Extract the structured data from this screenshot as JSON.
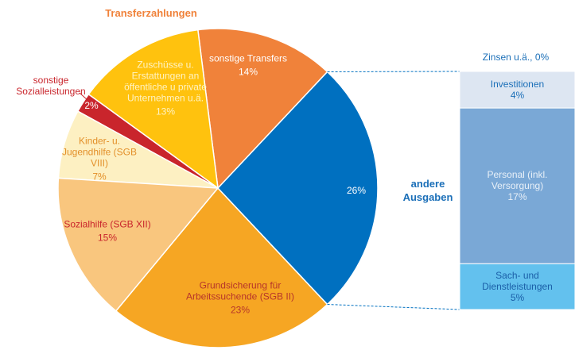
{
  "chart_data": {
    "type": "pie",
    "group_label": "Transferzahlungen",
    "categories": [
      "sonstige Transfers",
      "Zuschüsse u. Erstattungen an öffentliche u private Unternehmen u.ä.",
      "sonstige Sozialleistungen",
      "Kinder- u. Jugendhilfe (SGB VIII)",
      "Sozialhilfe (SGB XII)",
      "Grundsicherung für Arbeitssuchende (SGB II)",
      "andere Ausgaben"
    ],
    "values": [
      14,
      13,
      2,
      7,
      15,
      23,
      26
    ],
    "value_labels": [
      "14%",
      "13%",
      "2%",
      "7%",
      "15%",
      "23%",
      "26%"
    ],
    "colors": [
      "#f0823a",
      "#ffc20e",
      "#c9252c",
      "#fdf0c2",
      "#f9c67e",
      "#f6a623",
      "#0070c0"
    ],
    "breakdown": {
      "categories": [
        "Zinsen u.ä.,",
        "Investitionen",
        "Personal (inkl. Versorgung)",
        "Sach- und Dienstleistungen"
      ],
      "values": [
        0,
        4,
        17,
        5
      ],
      "value_labels": [
        "0%",
        "4%",
        "17%",
        "5%"
      ],
      "colors": [
        "#0070c0",
        "#dde6f2",
        "#7aa8d6",
        "#63c1ee"
      ]
    }
  }
}
